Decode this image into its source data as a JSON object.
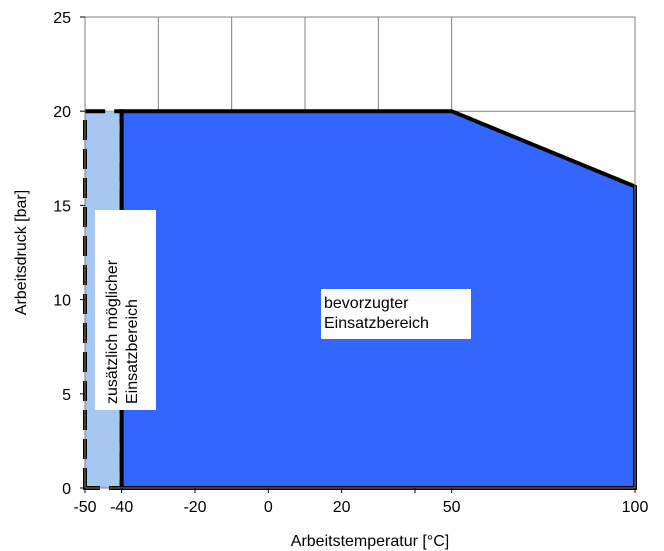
{
  "chart_data": {
    "type": "area",
    "title": "",
    "xlabel": "Arbeitstemperatur [°C]",
    "ylabel": "Arbeitsdruck [bar]",
    "xlim": [
      -50,
      100
    ],
    "ylim": [
      0,
      25
    ],
    "x_ticks": [
      -50,
      -40,
      -20,
      0,
      20,
      40,
      50,
      100
    ],
    "x_tick_labels": [
      "-50",
      "-40",
      "-20",
      "0",
      "20",
      "",
      "50",
      "100"
    ],
    "y_ticks": [
      0,
      5,
      10,
      15,
      20,
      25
    ],
    "y_tick_labels": [
      "0",
      "5",
      "10",
      "15",
      "20",
      "25"
    ],
    "x_gridlines": [
      -30,
      -10,
      10,
      30,
      50
    ],
    "y_gridlines": [
      20
    ],
    "grid": true,
    "regions": [
      {
        "name": "zusätzlich möglicher Einsatzbereich",
        "label_lines": [
          "zusätzlich möglicher",
          "Einsatzbereich"
        ],
        "label_orientation": "vertical",
        "color": "#a6c8f0",
        "border": "dashed",
        "points": [
          [
            -50,
            0
          ],
          [
            -50,
            20
          ],
          [
            -40,
            20
          ],
          [
            -40,
            0
          ]
        ]
      },
      {
        "name": "bevorzugter Einsatzbereich",
        "label_lines": [
          "bevorzugter",
          "Einsatzbereich"
        ],
        "label_orientation": "horizontal",
        "color": "#3366ff",
        "border": "solid",
        "points": [
          [
            -40,
            0
          ],
          [
            -40,
            20
          ],
          [
            50,
            20
          ],
          [
            100,
            16
          ],
          [
            100,
            0
          ]
        ]
      }
    ]
  }
}
